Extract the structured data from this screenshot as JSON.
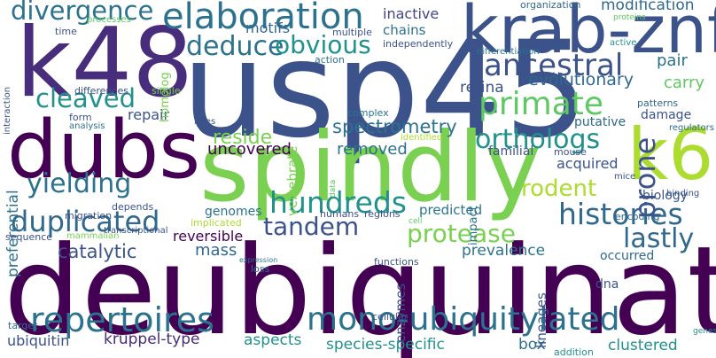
{
  "words": [
    {
      "text": "usp45",
      "color": "#3b528b"
    },
    {
      "text": "deubiquinating",
      "color": "#440154"
    },
    {
      "text": "spindly",
      "color": "#7ad151"
    },
    {
      "text": "dubs",
      "color": "#440154"
    },
    {
      "text": "k48",
      "color": "#472d7b"
    },
    {
      "text": "krab-znf",
      "color": "#3b528b"
    },
    {
      "text": "k6",
      "color": "#addc30"
    },
    {
      "text": "elaboration",
      "color": "#2c728e"
    },
    {
      "text": "divergence",
      "color": "#2c728e"
    },
    {
      "text": "repertoires",
      "color": "#2c728e"
    },
    {
      "text": "mono-ubiquitylated",
      "color": "#2c728e"
    },
    {
      "text": "histories",
      "color": "#31688e"
    },
    {
      "text": "hundreds",
      "color": "#21918c"
    },
    {
      "text": "primate",
      "color": "#5ec962"
    },
    {
      "text": "ancestral",
      "color": "#3b528b"
    },
    {
      "text": "deduce",
      "color": "#2c728e"
    },
    {
      "text": "obvious",
      "color": "#21918c"
    },
    {
      "text": "duplicated",
      "color": "#31688e"
    },
    {
      "text": "cleaved",
      "color": "#21918c"
    },
    {
      "text": "yielding",
      "color": "#2c728e"
    },
    {
      "text": "orthologs",
      "color": "#21918c"
    },
    {
      "text": "lastly",
      "color": "#31688e"
    },
    {
      "text": "prone",
      "color": "#3b528b"
    },
    {
      "text": "tandem",
      "color": "#3b528b"
    },
    {
      "text": "protease",
      "color": "#7ad151"
    },
    {
      "text": "rodent",
      "color": "#addc30"
    },
    {
      "text": "spectrometry",
      "color": "#2c728e"
    },
    {
      "text": "reside",
      "color": "#7ad151"
    },
    {
      "text": "catalytic",
      "color": "#3b528b"
    },
    {
      "text": "removed",
      "color": "#2c728e"
    },
    {
      "text": "uncovered",
      "color": "#440154"
    },
    {
      "text": "evolutionary",
      "color": "#31688e"
    },
    {
      "text": "inactive",
      "color": "#414487"
    },
    {
      "text": "modification",
      "color": "#31688e"
    },
    {
      "text": "motifs",
      "color": "#31688e"
    },
    {
      "text": "chains",
      "color": "#2c728e"
    },
    {
      "text": "retina",
      "color": "#3b528b"
    },
    {
      "text": "carry",
      "color": "#5ec962"
    },
    {
      "text": "pair",
      "color": "#2c728e"
    },
    {
      "text": "repair",
      "color": "#3b528b"
    },
    {
      "text": "reversible",
      "color": "#440154"
    },
    {
      "text": "acquired",
      "color": "#3b528b"
    },
    {
      "text": "mass",
      "color": "#31688e"
    },
    {
      "text": "prevalence",
      "color": "#2c728e"
    },
    {
      "text": "kruppel-type",
      "color": "#472d7b"
    },
    {
      "text": "species-specific",
      "color": "#21918c"
    },
    {
      "text": "aspects",
      "color": "#21918c"
    },
    {
      "text": "ubiquitin",
      "color": "#3b528b"
    },
    {
      "text": "clustered",
      "color": "#21918c"
    },
    {
      "text": "box",
      "color": "#2c728e"
    },
    {
      "text": "homolog",
      "color": "#7ad151"
    },
    {
      "text": "vertebrate",
      "color": "#7ad151"
    },
    {
      "text": "preferential",
      "color": "#2c728e"
    },
    {
      "text": "putative",
      "color": "#31688e"
    },
    {
      "text": "damage",
      "color": "#3b528b"
    },
    {
      "text": "familial",
      "color": "#3b528b"
    },
    {
      "text": "biology",
      "color": "#3b528b"
    },
    {
      "text": "predicted",
      "color": "#2c728e"
    },
    {
      "text": "genomes",
      "color": "#2c728e"
    },
    {
      "text": "implicated",
      "color": "#addc30"
    },
    {
      "text": "enzymes",
      "color": "#3b528b"
    },
    {
      "text": "lineages",
      "color": "#3b528b"
    },
    {
      "text": "occurred",
      "color": "#31688e"
    },
    {
      "text": "dna",
      "color": "#3b528b"
    },
    {
      "text": "encoding",
      "color": "#31688e"
    },
    {
      "text": "impact",
      "color": "#2c728e"
    },
    {
      "text": "patterns",
      "color": "#31688e"
    },
    {
      "text": "regulators",
      "color": "#31688e"
    },
    {
      "text": "organization",
      "color": "#31688e"
    },
    {
      "text": "proteins",
      "color": "#5ec962"
    },
    {
      "text": "differentiation",
      "color": "#2c728e"
    },
    {
      "text": "independently",
      "color": "#3b528b"
    },
    {
      "text": "multiple",
      "color": "#3b528b"
    },
    {
      "text": "action",
      "color": "#2c728e"
    },
    {
      "text": "active",
      "color": "#21918c"
    },
    {
      "text": "processes",
      "color": "#5ec962"
    },
    {
      "text": "time",
      "color": "#3b528b"
    },
    {
      "text": "interaction",
      "color": "#3b528b"
    },
    {
      "text": "differences",
      "color": "#3b528b"
    },
    {
      "text": "single",
      "color": "#7ad151"
    },
    {
      "text": "form",
      "color": "#3b528b"
    },
    {
      "text": "analysis",
      "color": "#2c728e"
    },
    {
      "text": "roles",
      "color": "#3b528b"
    },
    {
      "text": "complex",
      "color": "#2c728e"
    },
    {
      "text": "identified",
      "color": "#addc30"
    },
    {
      "text": "mouse",
      "color": "#3b528b"
    },
    {
      "text": "mice",
      "color": "#3b528b"
    },
    {
      "text": "binding",
      "color": "#3b528b"
    },
    {
      "text": "migration",
      "color": "#3b528b"
    },
    {
      "text": "depends",
      "color": "#3b528b"
    },
    {
      "text": "mammalian",
      "color": "#7ad151"
    },
    {
      "text": "sequence",
      "color": "#3b528b"
    },
    {
      "text": "transcriptional",
      "color": "#3b528b"
    },
    {
      "text": "humans",
      "color": "#3b528b"
    },
    {
      "text": "regions",
      "color": "#3b528b"
    },
    {
      "text": "cell",
      "color": "#5ec962"
    },
    {
      "text": "data",
      "color": "#5ec962"
    },
    {
      "text": "expression",
      "color": "#2c728e"
    },
    {
      "text": "loss",
      "color": "#2c728e"
    },
    {
      "text": "functions",
      "color": "#3b528b"
    },
    {
      "text": "cellular",
      "color": "#3b528b"
    },
    {
      "text": "target",
      "color": "#2c728e"
    },
    {
      "text": "addition",
      "color": "#21918c"
    },
    {
      "text": "genes",
      "color": "#21918c"
    }
  ]
}
